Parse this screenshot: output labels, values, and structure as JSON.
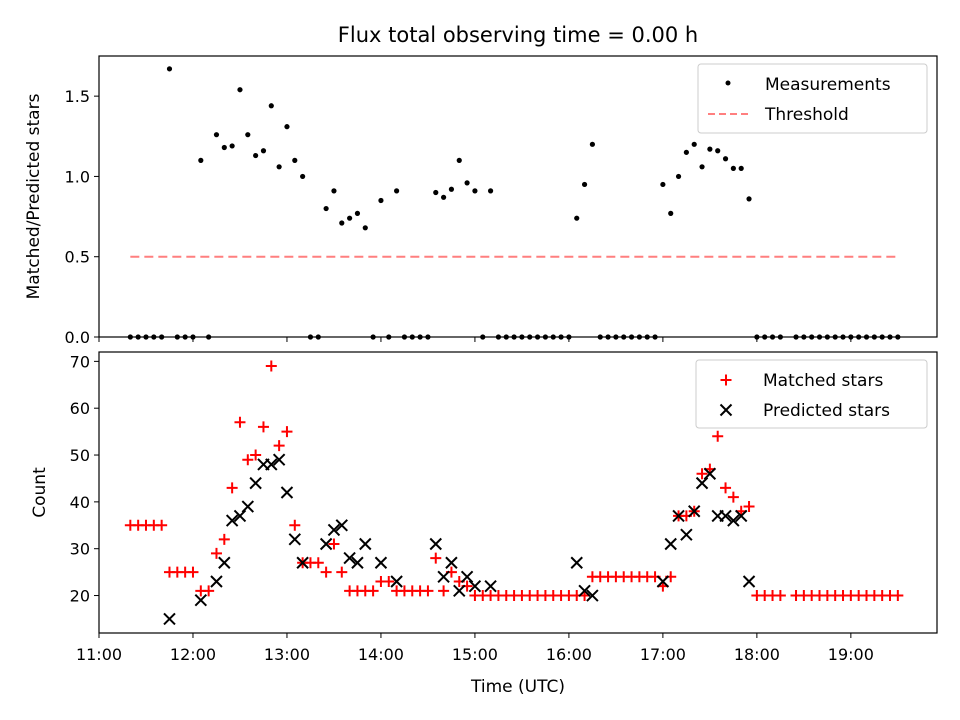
{
  "chart_data": [
    {
      "type": "scatter",
      "title": "Flux total observing time = 0.00 h",
      "xlabel": "",
      "ylabel": "Matched/Predicted stars",
      "xlim": [
        "11:00",
        "19:55"
      ],
      "ylim": [
        0,
        1.75
      ],
      "yticks": [
        "0.0",
        "0.5",
        "1.0",
        "1.5"
      ],
      "legend": "top-right",
      "series": [
        {
          "name": "Measurements",
          "marker": "dot",
          "color": "#000000",
          "points": [
            [
              "11:20",
              0
            ],
            [
              "11:25",
              0
            ],
            [
              "11:30",
              0
            ],
            [
              "11:35",
              0
            ],
            [
              "11:40",
              0
            ],
            [
              "11:45",
              1.67
            ],
            [
              "11:50",
              0
            ],
            [
              "11:55",
              0
            ],
            [
              "12:00",
              0
            ],
            [
              "12:05",
              1.1
            ],
            [
              "12:10",
              0
            ],
            [
              "12:15",
              1.26
            ],
            [
              "12:20",
              1.18
            ],
            [
              "12:25",
              1.19
            ],
            [
              "12:30",
              1.54
            ],
            [
              "12:35",
              1.26
            ],
            [
              "12:40",
              1.13
            ],
            [
              "12:45",
              1.16
            ],
            [
              "12:50",
              1.44
            ],
            [
              "12:55",
              1.06
            ],
            [
              "13:00",
              1.31
            ],
            [
              "13:05",
              1.1
            ],
            [
              "13:10",
              1.0
            ],
            [
              "13:15",
              0
            ],
            [
              "13:20",
              0
            ],
            [
              "13:25",
              0.8
            ],
            [
              "13:30",
              0.91
            ],
            [
              "13:35",
              0.71
            ],
            [
              "13:40",
              0.74
            ],
            [
              "13:45",
              0.77
            ],
            [
              "13:50",
              0.68
            ],
            [
              "13:55",
              0
            ],
            [
              "14:00",
              0.85
            ],
            [
              "14:05",
              0
            ],
            [
              "14:10",
              0.91
            ],
            [
              "14:15",
              0
            ],
            [
              "14:20",
              0
            ],
            [
              "14:25",
              0
            ],
            [
              "14:30",
              0
            ],
            [
              "14:35",
              0.9
            ],
            [
              "14:40",
              0.87
            ],
            [
              "14:45",
              0.92
            ],
            [
              "14:50",
              1.1
            ],
            [
              "14:55",
              0.96
            ],
            [
              "15:00",
              0.91
            ],
            [
              "15:05",
              0
            ],
            [
              "15:10",
              0.91
            ],
            [
              "15:15",
              0
            ],
            [
              "15:20",
              0
            ],
            [
              "15:25",
              0
            ],
            [
              "15:30",
              0
            ],
            [
              "15:35",
              0
            ],
            [
              "15:40",
              0
            ],
            [
              "15:45",
              0
            ],
            [
              "15:50",
              0
            ],
            [
              "15:55",
              0
            ],
            [
              "16:00",
              0
            ],
            [
              "16:05",
              0.74
            ],
            [
              "16:10",
              0.95
            ],
            [
              "16:15",
              1.2
            ],
            [
              "16:20",
              0
            ],
            [
              "16:25",
              0
            ],
            [
              "16:30",
              0
            ],
            [
              "16:35",
              0
            ],
            [
              "16:40",
              0
            ],
            [
              "16:45",
              0
            ],
            [
              "16:50",
              0
            ],
            [
              "16:55",
              0
            ],
            [
              "17:00",
              0.95
            ],
            [
              "17:05",
              0.77
            ],
            [
              "17:10",
              1.0
            ],
            [
              "17:15",
              1.15
            ],
            [
              "17:20",
              1.2
            ],
            [
              "17:25",
              1.06
            ],
            [
              "17:30",
              1.17
            ],
            [
              "17:35",
              1.16
            ],
            [
              "17:40",
              1.11
            ],
            [
              "17:45",
              1.05
            ],
            [
              "17:50",
              1.05
            ],
            [
              "17:55",
              0.86
            ],
            [
              "18:00",
              0
            ],
            [
              "18:05",
              0
            ],
            [
              "18:10",
              0
            ],
            [
              "18:15",
              0
            ],
            [
              "18:25",
              0
            ],
            [
              "18:30",
              0
            ],
            [
              "18:35",
              0
            ],
            [
              "18:40",
              0
            ],
            [
              "18:45",
              0
            ],
            [
              "18:50",
              0
            ],
            [
              "18:55",
              0
            ],
            [
              "19:00",
              0
            ],
            [
              "19:05",
              0
            ],
            [
              "19:10",
              0
            ],
            [
              "19:15",
              0
            ],
            [
              "19:20",
              0
            ],
            [
              "19:25",
              0
            ],
            [
              "19:30",
              0
            ]
          ]
        },
        {
          "name": "Threshold",
          "marker": "dashed-line",
          "color": "#ff7f7f",
          "points": [
            [
              "11:20",
              0.5
            ],
            [
              "19:30",
              0.5
            ]
          ]
        }
      ]
    },
    {
      "type": "scatter",
      "title": "",
      "xlabel": "Time (UTC)",
      "ylabel": "Count",
      "xlim": [
        "11:00",
        "19:55"
      ],
      "ylim": [
        12,
        72
      ],
      "xticks": [
        "11:00",
        "12:00",
        "13:00",
        "14:00",
        "15:00",
        "16:00",
        "17:00",
        "18:00",
        "19:00"
      ],
      "yticks": [
        "20",
        "30",
        "40",
        "50",
        "60",
        "70"
      ],
      "legend": "top-right",
      "series": [
        {
          "name": "Matched stars",
          "marker": "plus",
          "color": "#ff0000",
          "points": [
            [
              "11:20",
              35
            ],
            [
              "11:25",
              35
            ],
            [
              "11:30",
              35
            ],
            [
              "11:35",
              35
            ],
            [
              "11:40",
              35
            ],
            [
              "11:45",
              25
            ],
            [
              "11:50",
              25
            ],
            [
              "11:55",
              25
            ],
            [
              "12:00",
              25
            ],
            [
              "12:05",
              21
            ],
            [
              "12:10",
              21
            ],
            [
              "12:15",
              29
            ],
            [
              "12:20",
              32
            ],
            [
              "12:25",
              43
            ],
            [
              "12:30",
              57
            ],
            [
              "12:35",
              49
            ],
            [
              "12:40",
              50
            ],
            [
              "12:45",
              56
            ],
            [
              "12:50",
              69
            ],
            [
              "12:55",
              52
            ],
            [
              "13:00",
              55
            ],
            [
              "13:05",
              35
            ],
            [
              "13:10",
              27
            ],
            [
              "13:15",
              27
            ],
            [
              "13:20",
              27
            ],
            [
              "13:25",
              25
            ],
            [
              "13:30",
              31
            ],
            [
              "13:35",
              25
            ],
            [
              "13:40",
              21
            ],
            [
              "13:45",
              21
            ],
            [
              "13:50",
              21
            ],
            [
              "13:55",
              21
            ],
            [
              "14:00",
              23
            ],
            [
              "14:05",
              23
            ],
            [
              "14:10",
              21
            ],
            [
              "14:15",
              21
            ],
            [
              "14:20",
              21
            ],
            [
              "14:25",
              21
            ],
            [
              "14:30",
              21
            ],
            [
              "14:35",
              28
            ],
            [
              "14:40",
              21
            ],
            [
              "14:45",
              25
            ],
            [
              "14:50",
              23
            ],
            [
              "14:55",
              22
            ],
            [
              "15:00",
              20
            ],
            [
              "15:05",
              20
            ],
            [
              "15:10",
              20
            ],
            [
              "15:15",
              20
            ],
            [
              "15:20",
              20
            ],
            [
              "15:25",
              20
            ],
            [
              "15:30",
              20
            ],
            [
              "15:35",
              20
            ],
            [
              "15:40",
              20
            ],
            [
              "15:45",
              20
            ],
            [
              "15:50",
              20
            ],
            [
              "15:55",
              20
            ],
            [
              "16:00",
              20
            ],
            [
              "16:05",
              20
            ],
            [
              "16:10",
              20
            ],
            [
              "16:15",
              24
            ],
            [
              "16:20",
              24
            ],
            [
              "16:25",
              24
            ],
            [
              "16:30",
              24
            ],
            [
              "16:35",
              24
            ],
            [
              "16:40",
              24
            ],
            [
              "16:45",
              24
            ],
            [
              "16:50",
              24
            ],
            [
              "16:55",
              24
            ],
            [
              "17:00",
              22
            ],
            [
              "17:05",
              24
            ],
            [
              "17:10",
              37
            ],
            [
              "17:15",
              37
            ],
            [
              "17:20",
              38
            ],
            [
              "17:25",
              46
            ],
            [
              "17:30",
              47
            ],
            [
              "17:35",
              54
            ],
            [
              "17:40",
              43
            ],
            [
              "17:45",
              41
            ],
            [
              "17:50",
              38
            ],
            [
              "17:55",
              39
            ],
            [
              "18:00",
              20
            ],
            [
              "18:05",
              20
            ],
            [
              "18:10",
              20
            ],
            [
              "18:15",
              20
            ],
            [
              "18:25",
              20
            ],
            [
              "18:30",
              20
            ],
            [
              "18:35",
              20
            ],
            [
              "18:40",
              20
            ],
            [
              "18:45",
              20
            ],
            [
              "18:50",
              20
            ],
            [
              "18:55",
              20
            ],
            [
              "19:00",
              20
            ],
            [
              "19:05",
              20
            ],
            [
              "19:10",
              20
            ],
            [
              "19:15",
              20
            ],
            [
              "19:20",
              20
            ],
            [
              "19:25",
              20
            ],
            [
              "19:30",
              20
            ]
          ]
        },
        {
          "name": "Predicted stars",
          "marker": "x",
          "color": "#000000",
          "points": [
            [
              "11:45",
              15
            ],
            [
              "12:05",
              19
            ],
            [
              "12:15",
              23
            ],
            [
              "12:20",
              27
            ],
            [
              "12:25",
              36
            ],
            [
              "12:30",
              37
            ],
            [
              "12:35",
              39
            ],
            [
              "12:40",
              44
            ],
            [
              "12:45",
              48
            ],
            [
              "12:50",
              48
            ],
            [
              "12:55",
              49
            ],
            [
              "13:00",
              42
            ],
            [
              "13:05",
              32
            ],
            [
              "13:10",
              27
            ],
            [
              "13:25",
              31
            ],
            [
              "13:30",
              34
            ],
            [
              "13:35",
              35
            ],
            [
              "13:40",
              28
            ],
            [
              "13:45",
              27
            ],
            [
              "13:50",
              31
            ],
            [
              "14:00",
              27
            ],
            [
              "14:10",
              23
            ],
            [
              "14:35",
              31
            ],
            [
              "14:40",
              24
            ],
            [
              "14:45",
              27
            ],
            [
              "14:50",
              21
            ],
            [
              "14:55",
              24
            ],
            [
              "15:00",
              22
            ],
            [
              "15:10",
              22
            ],
            [
              "16:05",
              27
            ],
            [
              "16:10",
              21
            ],
            [
              "16:15",
              20
            ],
            [
              "17:00",
              23
            ],
            [
              "17:05",
              31
            ],
            [
              "17:10",
              37
            ],
            [
              "17:15",
              33
            ],
            [
              "17:20",
              38
            ],
            [
              "17:25",
              44
            ],
            [
              "17:30",
              46
            ],
            [
              "17:35",
              37
            ],
            [
              "17:40",
              37
            ],
            [
              "17:45",
              36
            ],
            [
              "17:50",
              37
            ],
            [
              "17:55",
              23
            ]
          ]
        }
      ]
    }
  ]
}
